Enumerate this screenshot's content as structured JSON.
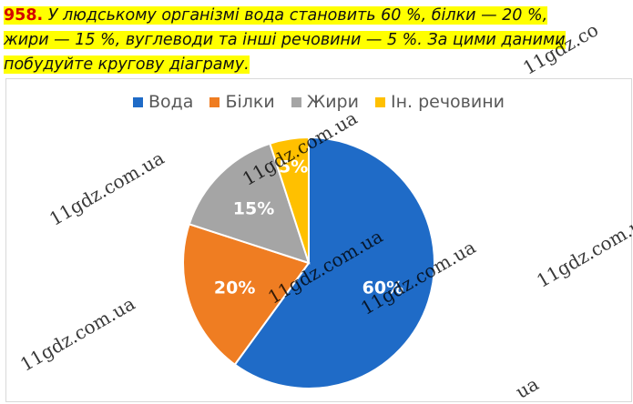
{
  "task": {
    "number": "958.",
    "lines": [
      " У людському організмі вода становить 60 %, білки — 20 %,",
      "жири — 15 %, вуглеводи та інші речовини — 5 %. За цими даними",
      "побудуйте кругову діаграму."
    ]
  },
  "chart_data": {
    "type": "pie",
    "title": "",
    "categories": [
      "Вода",
      "Білки",
      "Жири",
      "Ін. речовини"
    ],
    "values": [
      60,
      20,
      15,
      5
    ],
    "labels": [
      "60%",
      "20%",
      "15%",
      "5%"
    ],
    "colors": [
      "#1f6bc7",
      "#ef7d22",
      "#a5a5a5",
      "#ffc000"
    ],
    "legend_position": "top",
    "start_angle_deg": 0,
    "direction": "clockwise"
  },
  "watermark": {
    "text": "11gdz.com.ua",
    "short_a": "ua",
    "short_b": "11gdz.co"
  }
}
